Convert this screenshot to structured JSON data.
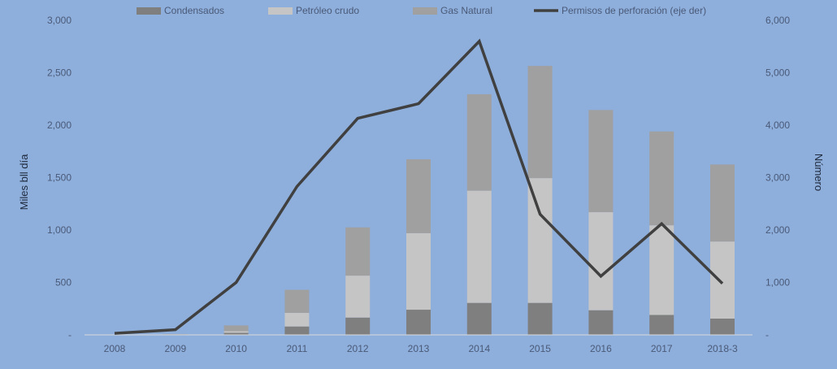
{
  "chart_data": {
    "type": "bar",
    "categories": [
      "2008",
      "2009",
      "2010",
      "2011",
      "2012",
      "2013",
      "2014",
      "2015",
      "2016",
      "2017",
      "2018-3"
    ],
    "series": [
      {
        "name": "Condensados",
        "kind": "bar",
        "color": "#7f7f7f",
        "values": [
          0,
          2,
          20,
          80,
          165,
          240,
          305,
          305,
          235,
          190,
          155
        ]
      },
      {
        "name": "Petróleo crudo",
        "kind": "bar",
        "color": "#c5c5c5",
        "values": [
          0,
          3,
          15,
          130,
          400,
          730,
          1070,
          1190,
          935,
          855,
          735
        ]
      },
      {
        "name": "Gas Natural",
        "kind": "bar",
        "color": "#a0a0a0",
        "values": [
          0,
          3,
          55,
          220,
          460,
          705,
          920,
          1070,
          975,
          895,
          735
        ]
      },
      {
        "name": "Permisos de perforación (eje der)",
        "kind": "line",
        "axis": "right",
        "color": "#404040",
        "values": [
          30,
          100,
          1000,
          2830,
          4130,
          4410,
          5600,
          2300,
          1120,
          2120,
          980
        ]
      }
    ],
    "ylabel": "Miles bll día",
    "y2label": "Número",
    "ylim": [
      0,
      3000
    ],
    "y2lim": [
      0,
      6000
    ],
    "yticks": [
      "-",
      "500",
      "1,000",
      "1,500",
      "2,000",
      "2,500",
      "3,000"
    ],
    "y2ticks": [
      "-",
      "1,000",
      "2,000",
      "3,000",
      "4,000",
      "5,000",
      "6,000"
    ],
    "legend_position": "top",
    "grid": false
  }
}
